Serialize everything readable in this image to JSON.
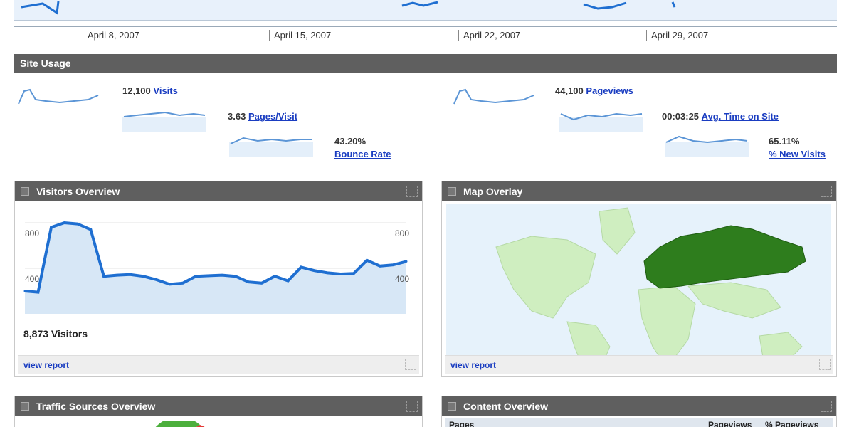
{
  "timeline": {
    "dates": [
      "April 8, 2007",
      "April 15, 2007",
      "April 22, 2007",
      "April 29, 2007"
    ]
  },
  "site_usage": {
    "title": "Site Usage",
    "metrics": [
      {
        "value": "12,100",
        "label": "Visits"
      },
      {
        "value": "3.63",
        "label": "Pages/Visit"
      },
      {
        "value": "43.20%",
        "label": "Bounce Rate"
      },
      {
        "value": "44,100",
        "label": "Pageviews"
      },
      {
        "value": "00:03:25",
        "label": "Avg. Time on Site"
      },
      {
        "value": "65.11%",
        "label": "% New Visits"
      }
    ]
  },
  "visitors_overview": {
    "title": "Visitors Overview",
    "y_top_left": "800",
    "y_mid_left": "400",
    "y_top_right": "800",
    "y_mid_right": "400",
    "total_text": "8,873 Visitors",
    "footer_link": "view report",
    "chart_data": {
      "type": "area",
      "x": [
        1,
        2,
        3,
        4,
        5,
        6,
        7,
        8,
        9,
        10,
        11,
        12,
        13,
        14,
        15,
        16,
        17,
        18,
        19,
        20,
        21,
        22,
        23,
        24,
        25,
        26,
        27,
        28,
        29,
        30
      ],
      "values": [
        200,
        190,
        760,
        800,
        790,
        740,
        330,
        340,
        345,
        330,
        300,
        260,
        270,
        330,
        335,
        340,
        330,
        280,
        270,
        330,
        290,
        410,
        380,
        360,
        350,
        355,
        470,
        420,
        430,
        460
      ],
      "ylim": [
        0,
        900
      ]
    }
  },
  "map_overlay": {
    "title": "Map Overlay",
    "footer_link": "view report"
  },
  "traffic_sources": {
    "title": "Traffic Sources Overview"
  },
  "content_overview": {
    "title": "Content Overview",
    "columns": [
      "Pages",
      "Pageviews",
      "% Pageviews"
    ]
  },
  "colors": {
    "accent_line": "#1f6fd1",
    "area_fill": "#d7e7f6",
    "map_dark": "#2e7d1d",
    "map_light": "#cfeec0"
  }
}
